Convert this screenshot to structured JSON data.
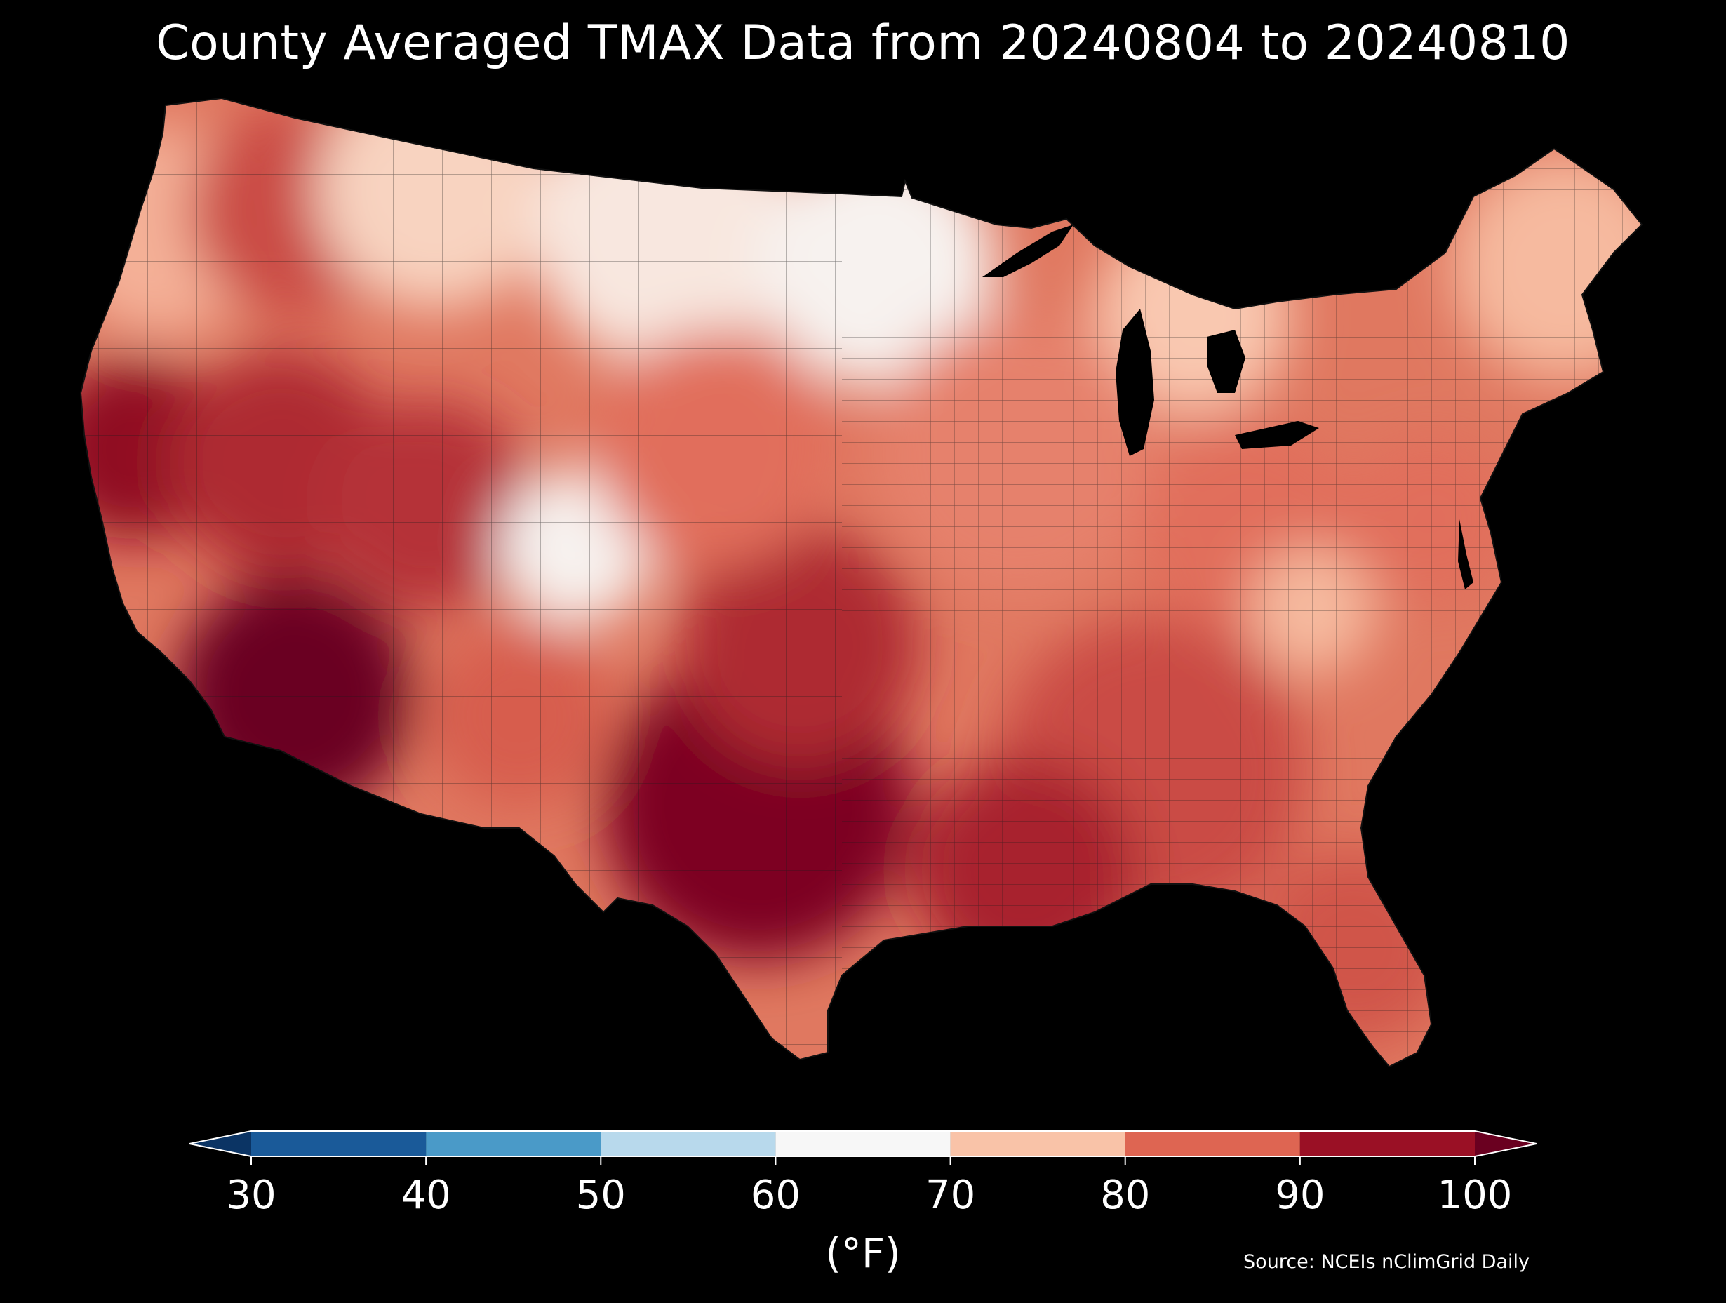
{
  "title": "County Averaged TMAX Data from 20240804 to 20240810",
  "map": {
    "projection": "conic",
    "region": "Contiguous United States",
    "units": "°F",
    "background": "#000000",
    "border_color": "#1a1a1a",
    "regional_values": [
      {
        "region": "pacific-northwest-coast",
        "value": 77
      },
      {
        "region": "northern-rockies-idaho",
        "value": 88
      },
      {
        "region": "montana-north",
        "value": 72
      },
      {
        "region": "northern-plains",
        "value": 68
      },
      {
        "region": "minnesota-wisconsin",
        "value": 66
      },
      {
        "region": "michigan",
        "value": 74
      },
      {
        "region": "new-england",
        "value": 76
      },
      {
        "region": "california-central-valley",
        "value": 96
      },
      {
        "region": "nevada",
        "value": 92
      },
      {
        "region": "arizona-desert",
        "value": 100
      },
      {
        "region": "utah",
        "value": 91
      },
      {
        "region": "colorado-rockies",
        "value": 66
      },
      {
        "region": "new-mexico",
        "value": 86
      },
      {
        "region": "texas",
        "value": 98
      },
      {
        "region": "oklahoma-kansas",
        "value": 92
      },
      {
        "region": "central-plains",
        "value": 84
      },
      {
        "region": "midwest",
        "value": 82
      },
      {
        "region": "ohio-valley",
        "value": 84
      },
      {
        "region": "appalachians",
        "value": 76
      },
      {
        "region": "southeast",
        "value": 88
      },
      {
        "region": "florida",
        "value": 87
      },
      {
        "region": "mid-atlantic",
        "value": 84
      },
      {
        "region": "gulf-coast",
        "value": 93
      }
    ]
  },
  "colorbar": {
    "ticks": [
      "30",
      "40",
      "50",
      "60",
      "70",
      "80",
      "90",
      "100"
    ],
    "bins": [
      {
        "from": 30,
        "to": 40,
        "color": "#1a5a99"
      },
      {
        "from": 40,
        "to": 50,
        "color": "#4a9ac8"
      },
      {
        "from": 50,
        "to": 60,
        "color": "#b8d9ec"
      },
      {
        "from": 60,
        "to": 70,
        "color": "#f7f7f7"
      },
      {
        "from": 70,
        "to": 80,
        "color": "#f9c3a8"
      },
      {
        "from": 80,
        "to": 90,
        "color": "#de6552"
      },
      {
        "from": 90,
        "to": 100,
        "color": "#9a1025"
      }
    ],
    "under_color": "#0b3464",
    "over_color": "#6a0020",
    "label": "(°F)"
  },
  "source": "Source: NCEIs nClimGrid Daily"
}
